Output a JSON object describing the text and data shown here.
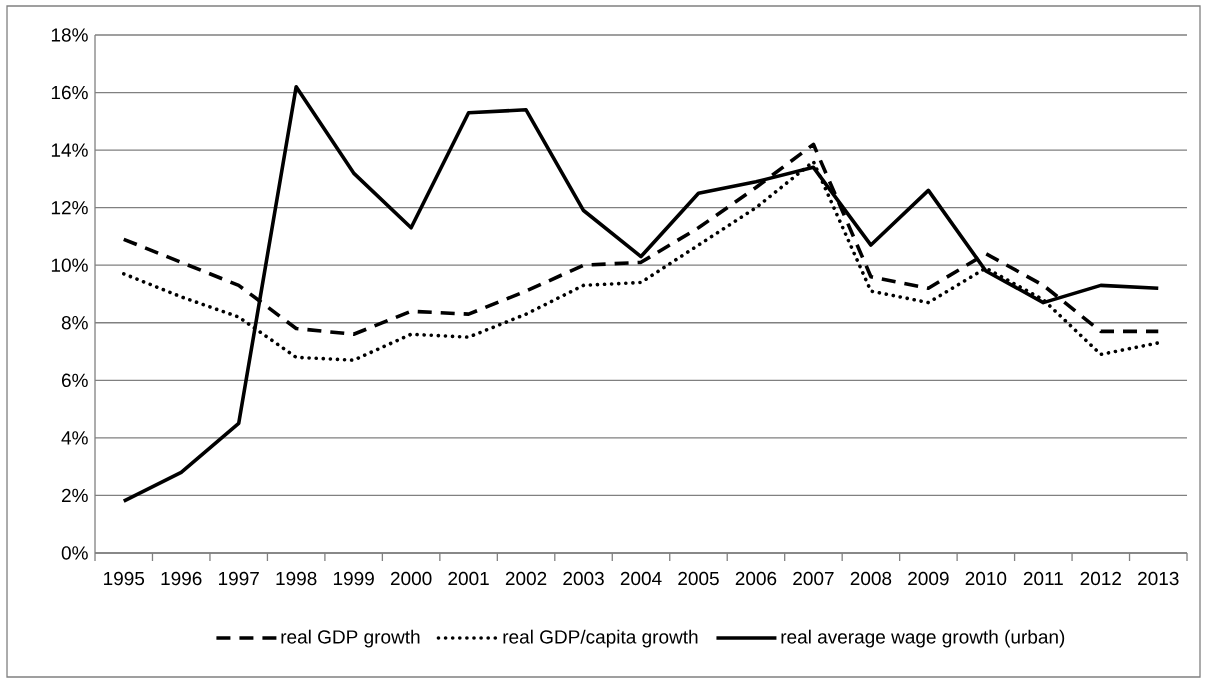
{
  "chart_data": {
    "type": "line",
    "categories": [
      "1995",
      "1996",
      "1997",
      "1998",
      "1999",
      "2000",
      "2001",
      "2002",
      "2003",
      "2004",
      "2005",
      "2006",
      "2007",
      "2008",
      "2009",
      "2010",
      "2011",
      "2012",
      "2013"
    ],
    "series": [
      {
        "name": "real GDP growth",
        "color": "#000000",
        "line_style": "dashed",
        "values": [
          10.9,
          10.1,
          9.3,
          7.8,
          7.6,
          8.4,
          8.3,
          9.1,
          10.0,
          10.1,
          11.3,
          12.7,
          14.2,
          9.6,
          9.2,
          10.4,
          9.3,
          7.7,
          7.7
        ]
      },
      {
        "name": "real GDP/capita growth",
        "color": "#000000",
        "line_style": "dotted",
        "values": [
          9.7,
          8.9,
          8.2,
          6.8,
          6.7,
          7.6,
          7.5,
          8.3,
          9.3,
          9.4,
          10.7,
          12.0,
          13.6,
          9.1,
          8.7,
          9.9,
          8.8,
          6.9,
          7.3
        ]
      },
      {
        "name": "real average wage growth (urban)",
        "color": "#000000",
        "line_style": "solid",
        "values": [
          1.8,
          2.8,
          4.5,
          16.2,
          13.2,
          11.3,
          15.3,
          15.4,
          11.9,
          10.3,
          12.5,
          12.9,
          13.4,
          10.7,
          12.6,
          9.8,
          8.7,
          9.3,
          9.2
        ]
      }
    ],
    "ylim": [
      0,
      18
    ],
    "yticks": [
      {
        "value": 0,
        "label": "0%"
      },
      {
        "value": 2,
        "label": "2%"
      },
      {
        "value": 4,
        "label": "4%"
      },
      {
        "value": 6,
        "label": "6%"
      },
      {
        "value": 8,
        "label": "8%"
      },
      {
        "value": 10,
        "label": "10%"
      },
      {
        "value": 12,
        "label": "12%"
      },
      {
        "value": 14,
        "label": "14%"
      },
      {
        "value": 16,
        "label": "16%"
      },
      {
        "value": 18,
        "label": "18%"
      }
    ],
    "grid": "y",
    "legend": "bottom",
    "marker": "none"
  }
}
